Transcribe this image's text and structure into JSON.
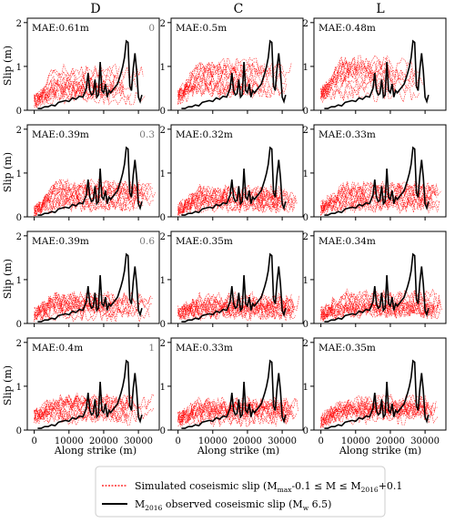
{
  "figure": {
    "columns": [
      "D",
      "C",
      "L"
    ],
    "row_tags": [
      "0",
      "0.3",
      "0.6",
      "1"
    ],
    "ylabel": "Slip (m)",
    "xlabel": "Along strike (m)",
    "legend": {
      "simulated_pre": "Simulated coseismic slip (M",
      "simulated_sub1": "max",
      "simulated_mid": "-0.1 ≤ M ≤ M",
      "simulated_sub2": "2016",
      "simulated_post": "+0.1",
      "observed_pre": "M",
      "observed_sub1": "2016",
      "observed_mid": " observed coseismic slip (M",
      "observed_sub2": "w",
      "observed_post": " 6.5)"
    }
  },
  "colors": {
    "observed": "#000000",
    "simulated": "#ff0000",
    "frame": "#000000",
    "tag": "#777777"
  },
  "chart_data": {
    "type": "line",
    "layout": "grid 4x3",
    "xlim": [
      -2000,
      36000
    ],
    "ylim": [
      0,
      2.1
    ],
    "xticks": [
      0,
      10000,
      20000,
      30000
    ],
    "xtick_labels": [
      "0",
      "10000",
      "20000",
      "30000"
    ],
    "yticks": [
      0,
      1,
      2
    ],
    "ytick_labels": [
      "0",
      "1",
      "2"
    ],
    "grid": false,
    "legend_position": "bottom-center",
    "observed_slip": {
      "x": [
        1000,
        2000,
        3000,
        4000,
        5000,
        6000,
        7000,
        8000,
        9000,
        10000,
        11000,
        12000,
        13000,
        14000,
        15000,
        15500,
        16000,
        16500,
        17000,
        17500,
        18000,
        18500,
        19000,
        19500,
        20000,
        20500,
        21000,
        21500,
        22000,
        23000,
        24000,
        25000,
        25500,
        26000,
        26500,
        27000,
        27500,
        28000,
        28500,
        29000,
        29500,
        30000,
        30500,
        31000
      ],
      "y": [
        0.04,
        0.04,
        0.08,
        0.08,
        0.12,
        0.1,
        0.18,
        0.2,
        0.22,
        0.2,
        0.28,
        0.25,
        0.32,
        0.3,
        0.5,
        0.85,
        0.45,
        0.35,
        0.38,
        0.7,
        0.3,
        0.35,
        1.1,
        0.45,
        0.4,
        0.6,
        0.3,
        0.45,
        0.4,
        0.5,
        0.6,
        0.85,
        1.0,
        1.2,
        1.58,
        1.55,
        0.55,
        0.45,
        0.95,
        1.3,
        0.9,
        0.3,
        0.2,
        0.35
      ]
    },
    "panels": [
      {
        "row": 0,
        "col": "D",
        "mae": "MAE:0.61m",
        "tag": "0",
        "sim_center": 0.55,
        "sim_spread": 0.35,
        "sim_start": 0.2,
        "sim_end_min": 12000,
        "sim_end_max": 33000
      },
      {
        "row": 0,
        "col": "C",
        "mae": "MAE:0.5m",
        "tag": "",
        "sim_center": 0.7,
        "sim_spread": 0.35,
        "sim_start": 0.3,
        "sim_end_min": 22000,
        "sim_end_max": 34000
      },
      {
        "row": 0,
        "col": "L",
        "mae": "MAE:0.48m",
        "tag": "",
        "sim_center": 0.7,
        "sim_spread": 0.4,
        "sim_start": 0.35,
        "sim_end_min": 14000,
        "sim_end_max": 34000
      },
      {
        "row": 1,
        "col": "D",
        "mae": "MAE:0.39m",
        "tag": "0.3",
        "sim_center": 0.5,
        "sim_spread": 0.22,
        "sim_start": 0.1,
        "sim_end_min": 30000,
        "sim_end_max": 35000
      },
      {
        "row": 1,
        "col": "C",
        "mae": "MAE:0.32m",
        "tag": "",
        "sim_center": 0.42,
        "sim_spread": 0.18,
        "sim_start": 0.15,
        "sim_end_min": 30000,
        "sim_end_max": 35000
      },
      {
        "row": 1,
        "col": "L",
        "mae": "MAE:0.33m",
        "tag": "",
        "sim_center": 0.45,
        "sim_spread": 0.2,
        "sim_start": 0.2,
        "sim_end_min": 32000,
        "sim_end_max": 35000
      },
      {
        "row": 2,
        "col": "D",
        "mae": "MAE:0.39m",
        "tag": "0.6",
        "sim_center": 0.4,
        "sim_spread": 0.2,
        "sim_start": 0.2,
        "sim_end_min": 18000,
        "sim_end_max": 35000
      },
      {
        "row": 2,
        "col": "C",
        "mae": "MAE:0.35m",
        "tag": "",
        "sim_center": 0.4,
        "sim_spread": 0.18,
        "sim_start": 0.25,
        "sim_end_min": 32000,
        "sim_end_max": 35000
      },
      {
        "row": 2,
        "col": "L",
        "mae": "MAE:0.34m",
        "tag": "",
        "sim_center": 0.42,
        "sim_spread": 0.2,
        "sim_start": 0.2,
        "sim_end_min": 32000,
        "sim_end_max": 35000
      },
      {
        "row": 3,
        "col": "D",
        "mae": "MAE:0.4m",
        "tag": "1",
        "sim_center": 0.5,
        "sim_spread": 0.22,
        "sim_start": 0.3,
        "sim_end_min": 26000,
        "sim_end_max": 35000
      },
      {
        "row": 3,
        "col": "C",
        "mae": "MAE:0.33m",
        "tag": "",
        "sim_center": 0.42,
        "sim_spread": 0.18,
        "sim_start": 0.25,
        "sim_end_min": 30000,
        "sim_end_max": 35000
      },
      {
        "row": 3,
        "col": "L",
        "mae": "MAE:0.35m",
        "tag": "",
        "sim_center": 0.45,
        "sim_spread": 0.2,
        "sim_start": 0.2,
        "sim_end_min": 30000,
        "sim_end_max": 35000
      }
    ],
    "simulated_traces_per_panel": 14
  }
}
